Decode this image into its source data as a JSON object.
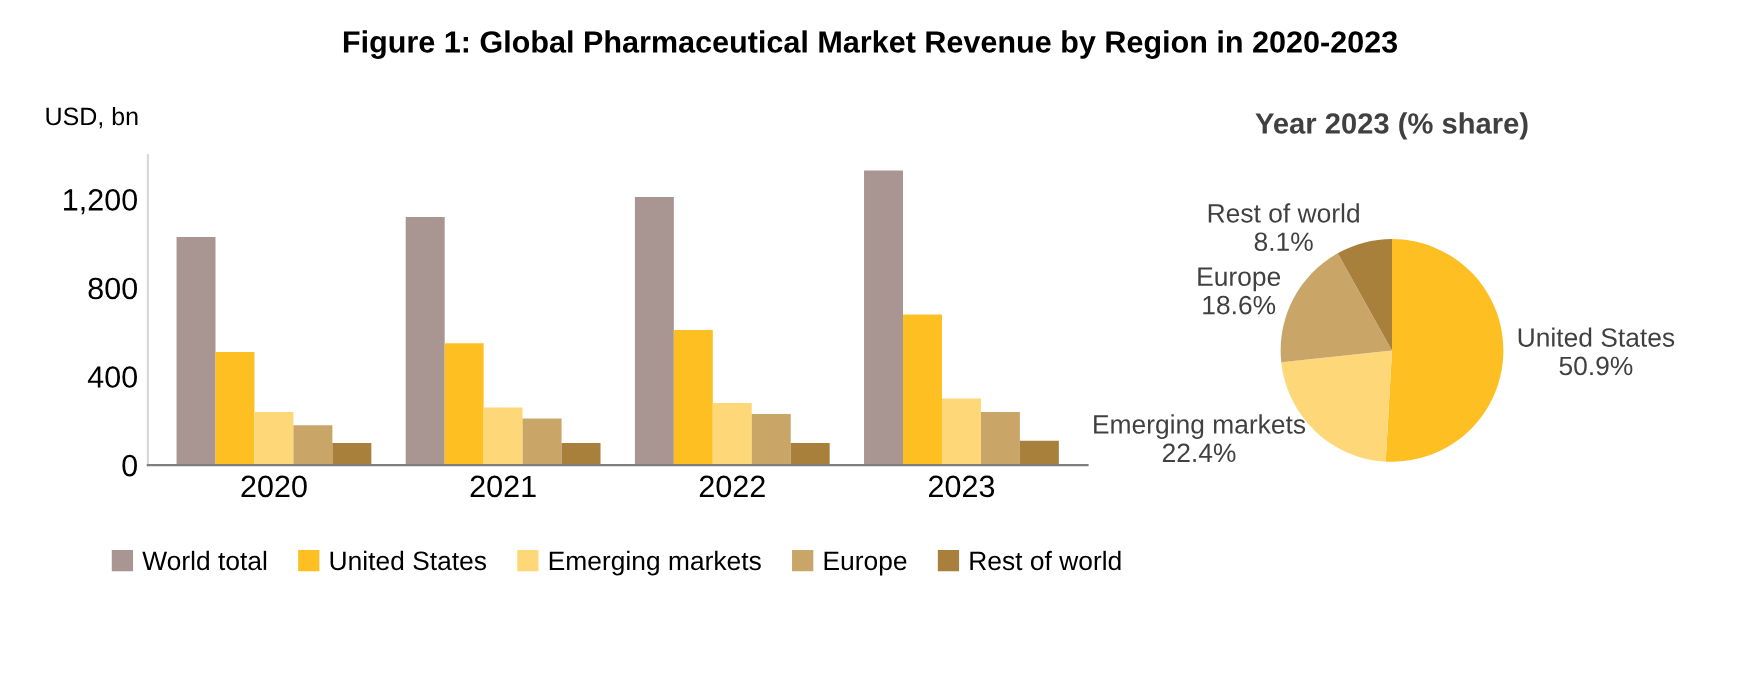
{
  "chart_data": [
    {
      "type": "bar",
      "title": "Figure 1: Global Pharmaceutical Market Revenue by Region in 2020-2023",
      "ylabel": "USD, bn",
      "categories": [
        "2020",
        "2021",
        "2022",
        "2023"
      ],
      "series": [
        {
          "name": "World total",
          "color": "#a99592",
          "values": [
            1030,
            1120,
            1210,
            1330
          ]
        },
        {
          "name": "United States",
          "color": "#fdbf22",
          "values": [
            510,
            550,
            610,
            680
          ]
        },
        {
          "name": "Emerging markets",
          "color": "#fed878",
          "values": [
            240,
            260,
            280,
            300
          ]
        },
        {
          "name": "Europe",
          "color": "#c9a568",
          "values": [
            180,
            210,
            230,
            240
          ]
        },
        {
          "name": "Rest of world",
          "color": "#a97f3c",
          "values": [
            100,
            100,
            100,
            110
          ]
        }
      ],
      "ylim": [
        0,
        1400
      ],
      "yticks": [
        0,
        400,
        800,
        {
          "value": 1200,
          "label": "1,200"
        }
      ],
      "grid": false,
      "legend": "bottom"
    },
    {
      "type": "pie",
      "title": "Year 2023 (% share)",
      "categories": [
        "United States",
        "Emerging markets",
        "Europe",
        "Rest of world"
      ],
      "values": [
        50.9,
        22.4,
        18.6,
        8.1
      ],
      "colors": [
        "#fdbf22",
        "#fed878",
        "#c9a568",
        "#a97f3c"
      ],
      "value_labels": [
        "50.9%",
        "22.4%",
        "18.6%",
        "8.1%"
      ]
    }
  ]
}
